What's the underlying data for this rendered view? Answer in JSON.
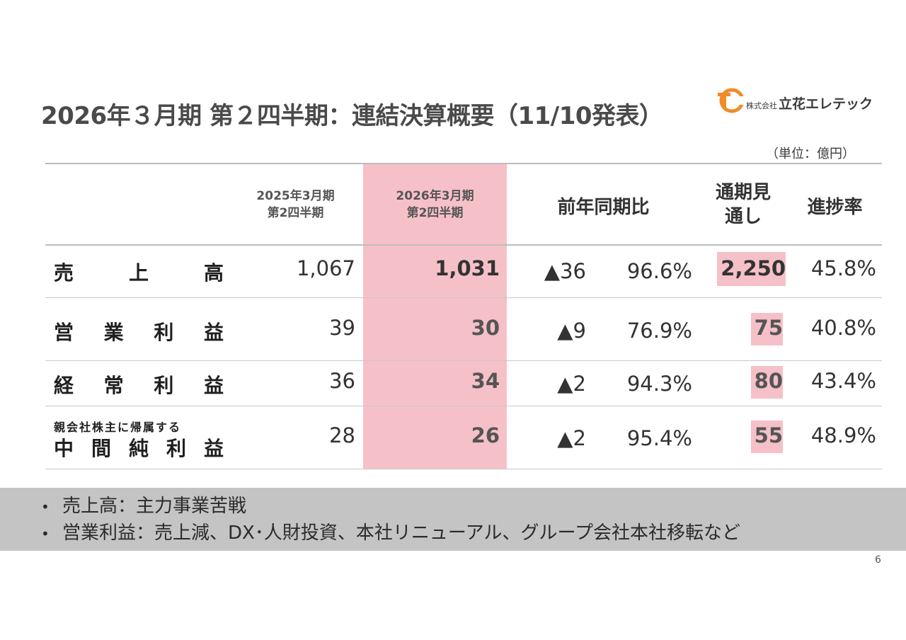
{
  "title": "2026年３月期 第２四半期：連結決算概要（11/10発表）",
  "logo": {
    "company_prefix": "株式会社",
    "company_name": "立花エレテック",
    "colors": {
      "accent": "#f08c28"
    }
  },
  "unit_note": "（単位：億円）",
  "table": {
    "headers": {
      "prev_line1": "2025年3月期",
      "prev_line2": "第2四半期",
      "curr_line1": "2026年3月期",
      "curr_line2": "第2四半期",
      "yoy": "前年同期比",
      "forecast_line1": "通期見",
      "forecast_line2": "通し",
      "progress": "進捗率"
    },
    "rows": [
      {
        "label_chars": [
          "売",
          "上",
          "高"
        ],
        "prev": "1,067",
        "curr": "1,031",
        "diff": "▲36",
        "ratio": "96.6%",
        "forecast": "2,250",
        "progress": "45.8%"
      },
      {
        "label_chars": [
          "営",
          "業",
          "利",
          "益"
        ],
        "prev": "39",
        "curr": "30",
        "diff": "▲9",
        "ratio": "76.9%",
        "forecast": "75",
        "progress": "40.8%"
      },
      {
        "label_chars": [
          "経",
          "常",
          "利",
          "益"
        ],
        "prev": "36",
        "curr": "34",
        "diff": "▲2",
        "ratio": "94.3%",
        "forecast": "80",
        "progress": "43.4%"
      },
      {
        "label_top": "親会社株主に帰属する",
        "label_chars": [
          "中",
          "間",
          "純",
          "利",
          "益"
        ],
        "prev": "28",
        "curr": "26",
        "diff": "▲2",
        "ratio": "95.4%",
        "forecast": "55",
        "progress": "48.9%"
      }
    ]
  },
  "notes": [
    "売上高：主力事業苦戦",
    "営業利益：売上減、DX･人財投資、本社リニューアル、グループ会社本社移転など"
  ],
  "bullet_char": "•",
  "page_number": "6",
  "colors": {
    "highlight": "#f6c0c8",
    "band": "#c4c4c4"
  }
}
